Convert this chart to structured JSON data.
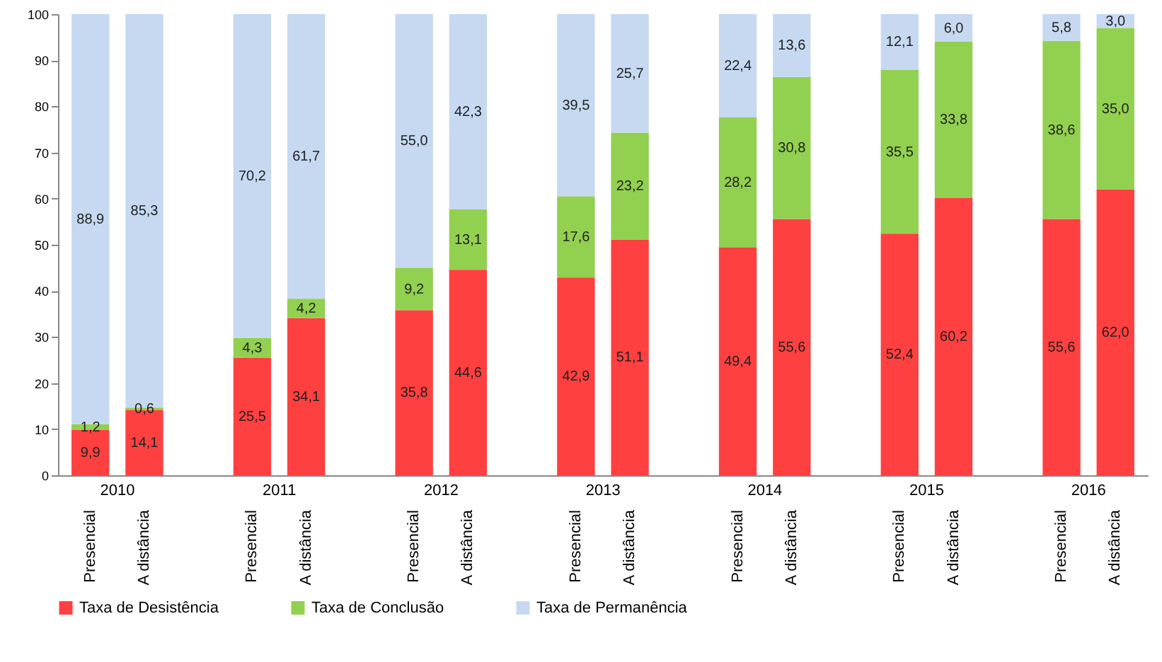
{
  "chart_data": {
    "type": "bar",
    "stacked": true,
    "categories": [
      "Presencial",
      "A distância",
      "Presencial",
      "A distância",
      "Presencial",
      "A distância",
      "Presencial",
      "A distância",
      "Presencial",
      "A distância",
      "Presencial",
      "A distância",
      "Presencial",
      "A distância"
    ],
    "annotations": [
      "2010",
      "2011",
      "2012",
      "2013",
      "2014",
      "2015",
      "2016"
    ],
    "series": [
      {
        "name": "Taxa de Desistência",
        "color": "#ff4040",
        "values": [
          9.9,
          14.1,
          25.5,
          34.1,
          35.8,
          44.6,
          42.9,
          51.1,
          49.4,
          55.6,
          52.4,
          60.2,
          55.6,
          62.0
        ],
        "value_labels": [
          "9,9",
          "14,1",
          "25,5",
          "34,1",
          "35,8",
          "44,6",
          "42,9",
          "51,1",
          "49,4",
          "55,6",
          "52,4",
          "60,2",
          "55,6",
          "62,0"
        ]
      },
      {
        "name": "Taxa de Conclusão",
        "color": "#92d050",
        "values": [
          1.2,
          0.6,
          4.3,
          4.2,
          9.2,
          13.1,
          17.6,
          23.2,
          28.2,
          30.8,
          35.5,
          33.8,
          38.6,
          35.0
        ],
        "value_labels": [
          "1,2",
          "0,6",
          "4,3",
          "4,2",
          "9,2",
          "13,1",
          "17,6",
          "23,2",
          "28,2",
          "30,8",
          "35,5",
          "33,8",
          "38,6",
          "35,0"
        ]
      },
      {
        "name": "Taxa de Permanência",
        "color": "#c6d9f1",
        "values": [
          88.9,
          85.3,
          70.2,
          61.7,
          55.0,
          42.3,
          39.5,
          25.7,
          22.4,
          13.6,
          12.1,
          6.0,
          5.8,
          3.0
        ],
        "value_labels": [
          "88,9",
          "85,3",
          "70,2",
          "61,7",
          "55,0",
          "42,3",
          "39,5",
          "25,7",
          "22,4",
          "13,6",
          "12,1",
          "6,0",
          "5,8",
          "3,0"
        ]
      }
    ],
    "ylim": [
      0,
      100
    ],
    "yticks": [
      0,
      10,
      20,
      30,
      40,
      50,
      60,
      70,
      80,
      90,
      100
    ],
    "grid": false,
    "legend": "bottom"
  }
}
